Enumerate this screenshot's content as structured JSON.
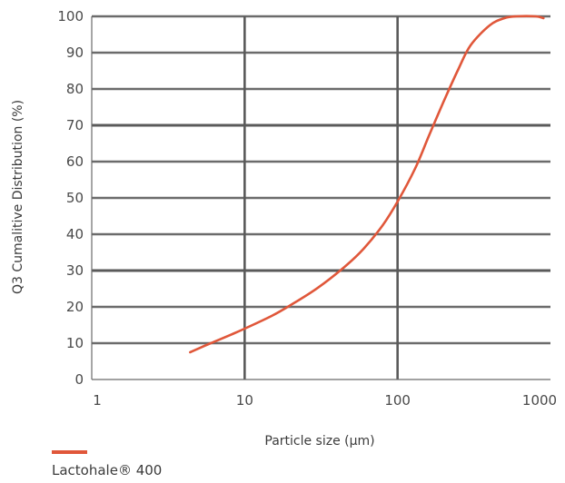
{
  "chart_data": {
    "type": "line",
    "title": "",
    "xlabel": "Particle size (µm)",
    "ylabel": "Q3 Cumalitive Distribution (%)",
    "xscale": "log",
    "xlim": [
      1,
      1000
    ],
    "ylim": [
      0,
      100
    ],
    "x_ticks": [
      "1",
      "10",
      "100",
      "1000"
    ],
    "y_ticks": [
      "0",
      "10",
      "20",
      "30",
      "40",
      "50",
      "60",
      "70",
      "80",
      "90",
      "100"
    ],
    "grid": true,
    "legend_position": "bottom-left",
    "series": [
      {
        "name": "Lactohale® 400",
        "color": "#e0573a",
        "x": [
          4.4,
          6,
          8,
          10,
          15,
          20,
          30,
          45,
          60,
          80,
          100,
          130,
          160,
          200,
          250,
          300,
          400,
          500,
          600,
          800,
          900
        ],
        "y": [
          7.5,
          10,
          12.2,
          14,
          17.5,
          20.5,
          25.2,
          31,
          36,
          42.5,
          49,
          58,
          67,
          76.5,
          85.5,
          92,
          97.5,
          99.5,
          100,
          100,
          99.5
        ]
      }
    ]
  }
}
